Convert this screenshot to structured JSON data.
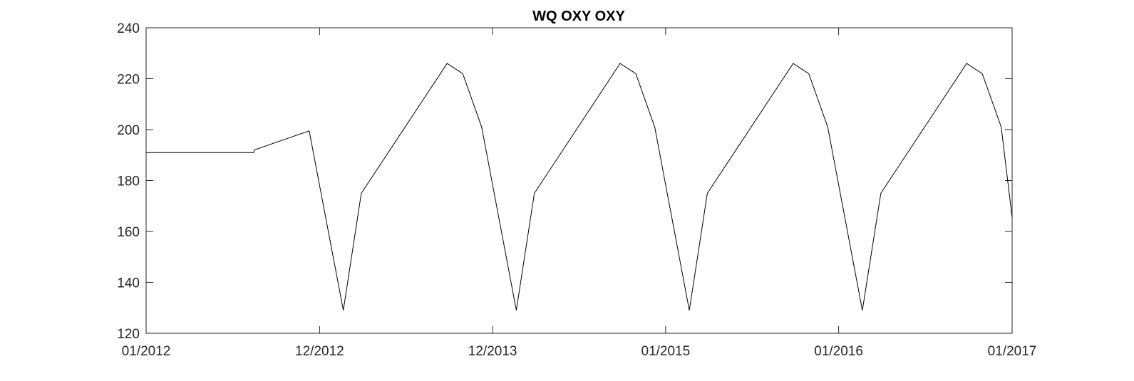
{
  "chart_data": {
    "type": "line",
    "title": "WQ OXY OXY",
    "xlabel": "",
    "ylabel": "",
    "xlim": [
      "2012-01-01",
      "2017-01-01"
    ],
    "ylim": [
      120,
      240
    ],
    "x_ticks": [
      {
        "date": "2012-01-01",
        "label": "01/2012"
      },
      {
        "date": "2013-01-01",
        "label": "12/2012"
      },
      {
        "date": "2014-01-01",
        "label": "12/2013"
      },
      {
        "date": "2015-01-01",
        "label": "01/2015"
      },
      {
        "date": "2016-01-01",
        "label": "01/2016"
      },
      {
        "date": "2017-01-01",
        "label": "01/2017"
      }
    ],
    "y_ticks": [
      120,
      140,
      160,
      180,
      200,
      220,
      240
    ],
    "grid": false,
    "legend": "none",
    "line_color": "#000000",
    "series": [
      {
        "x": [
          "2012-01-01",
          "2012-08-15",
          "2012-08-16",
          "2012-12-10",
          "2013-02-20",
          "2013-03-30",
          "2013-09-27",
          "2013-10-30",
          "2013-12-09",
          "2014-02-20",
          "2014-03-30",
          "2014-09-27",
          "2014-10-30",
          "2014-12-09",
          "2015-02-20",
          "2015-03-30",
          "2015-09-27",
          "2015-10-30",
          "2015-12-09",
          "2016-02-20",
          "2016-03-30",
          "2016-09-27",
          "2016-10-30",
          "2016-12-09",
          "2017-01-01"
        ],
        "y": [
          191,
          191,
          192,
          199.5,
          129,
          175,
          226,
          222,
          201,
          129,
          175,
          226,
          222,
          201,
          129,
          175,
          226,
          222,
          201,
          129,
          175,
          226,
          222,
          201,
          165.5
        ]
      }
    ]
  }
}
